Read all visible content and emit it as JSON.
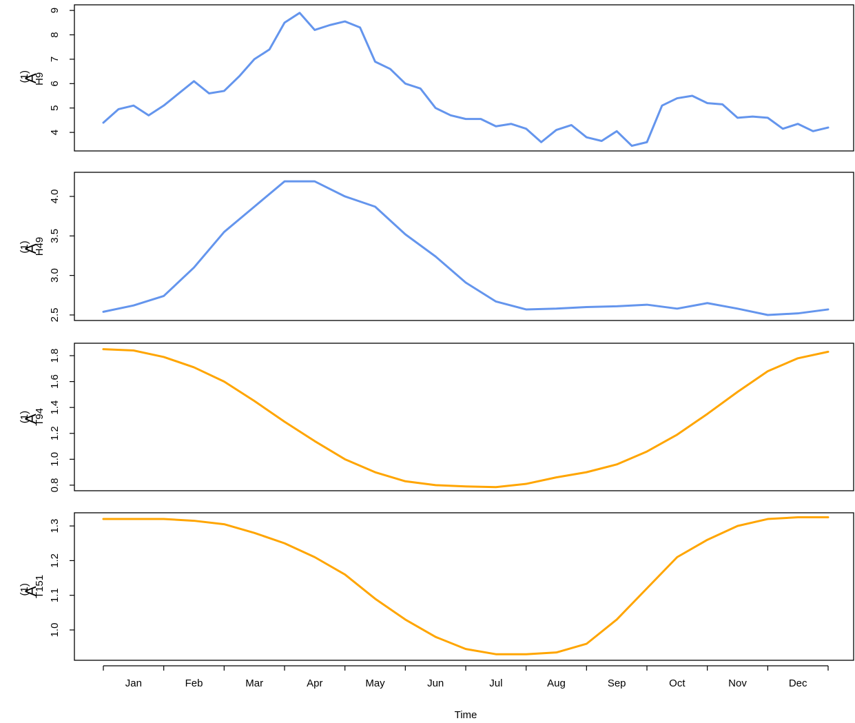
{
  "chart_data": [
    {
      "type": "line",
      "color": "#6495ED",
      "ylabel": {
        "base": "A",
        "sup": "(1)",
        "sub": "H9"
      },
      "xlim": [
        0,
        12
      ],
      "ylim": [
        3.24,
        9.23
      ],
      "yticks": [
        4,
        5,
        6,
        7,
        8,
        9
      ],
      "x": [
        0,
        0.25,
        0.5,
        0.75,
        1,
        1.25,
        1.5,
        1.75,
        2,
        2.25,
        2.5,
        2.75,
        3,
        3.25,
        3.5,
        3.75,
        4,
        4.25,
        4.5,
        4.75,
        5,
        5.25,
        5.5,
        5.75,
        6,
        6.25,
        6.5,
        6.75,
        7,
        7.25,
        7.5,
        7.75,
        8,
        8.25,
        8.5,
        8.75,
        9,
        9.25,
        9.5,
        9.75,
        10,
        10.25,
        10.5,
        10.75,
        11,
        11.25,
        11.5,
        11.75,
        12
      ],
      "values": [
        4.4,
        4.95,
        5.1,
        4.7,
        5.1,
        5.6,
        6.1,
        5.6,
        5.7,
        6.3,
        7.0,
        7.4,
        8.5,
        8.9,
        8.2,
        8.4,
        8.55,
        8.3,
        6.9,
        6.6,
        6.0,
        5.8,
        5.0,
        4.7,
        4.55,
        4.55,
        4.25,
        4.35,
        4.15,
        3.6,
        4.1,
        4.3,
        3.8,
        3.65,
        4.05,
        3.45,
        3.6,
        5.1,
        5.4,
        5.5,
        5.2,
        5.15,
        4.6,
        4.65,
        4.6,
        4.15,
        4.35,
        4.05,
        4.2
      ]
    },
    {
      "type": "line",
      "color": "#6495ED",
      "ylabel": {
        "base": "A",
        "sup": "(1)",
        "sub": "H49"
      },
      "xlim": [
        0,
        12
      ],
      "ylim": [
        2.43,
        4.305
      ],
      "yticks": [
        2.5,
        {
          "value": 3,
          "label": "3.0"
        },
        3.5,
        {
          "value": 4,
          "label": "4.0"
        }
      ],
      "x": [
        0,
        0.5,
        1,
        1.5,
        2,
        2.5,
        3,
        3.5,
        4,
        4.5,
        5,
        5.5,
        6,
        6.5,
        7,
        7.5,
        8,
        8.5,
        9,
        9.5,
        10,
        10.5,
        11,
        11.5,
        12
      ],
      "values": [
        2.54,
        2.62,
        2.74,
        3.1,
        3.55,
        3.87,
        4.19,
        4.19,
        4.0,
        3.87,
        3.52,
        3.24,
        2.91,
        2.67,
        2.57,
        2.58,
        2.6,
        2.61,
        2.63,
        2.58,
        2.65,
        2.58,
        2.5,
        2.52,
        2.57
      ]
    },
    {
      "type": "line",
      "color": "#FFA500",
      "ylabel": {
        "base": "A",
        "sup": "(1)",
        "sub": "T94"
      },
      "xlim": [
        0,
        12
      ],
      "ylim": [
        0.757,
        1.896
      ],
      "yticks": [
        0.8,
        {
          "value": 1,
          "label": "1.0"
        },
        1.2,
        1.4,
        1.6,
        1.8
      ],
      "x": [
        0,
        0.5,
        1,
        1.5,
        2,
        2.5,
        3,
        3.5,
        4,
        4.5,
        5,
        5.5,
        6,
        6.5,
        7,
        7.5,
        8,
        8.5,
        9,
        9.5,
        10,
        10.5,
        11,
        11.5,
        12
      ],
      "values": [
        1.85,
        1.84,
        1.79,
        1.71,
        1.6,
        1.45,
        1.29,
        1.14,
        1.0,
        0.9,
        0.83,
        0.8,
        0.79,
        0.785,
        0.81,
        0.86,
        0.9,
        0.96,
        1.06,
        1.19,
        1.35,
        1.52,
        1.68,
        1.78,
        1.83
      ]
    },
    {
      "type": "line",
      "color": "#FFA500",
      "ylabel": {
        "base": "A",
        "sup": "(1)",
        "sub": "T151"
      },
      "xlim": [
        0,
        12
      ],
      "ylim": [
        0.9125,
        1.338
      ],
      "yticks": [
        {
          "value": 1,
          "label": "1.0"
        },
        1.1,
        1.2,
        1.3
      ],
      "x": [
        0,
        0.5,
        1,
        1.5,
        2,
        2.5,
        3,
        3.5,
        4,
        4.5,
        5,
        5.5,
        6,
        6.5,
        7,
        7.5,
        8,
        8.5,
        9,
        9.5,
        10,
        10.5,
        11,
        11.5,
        12
      ],
      "values": [
        1.32,
        1.32,
        1.32,
        1.315,
        1.305,
        1.28,
        1.25,
        1.21,
        1.16,
        1.09,
        1.03,
        0.98,
        0.945,
        0.93,
        0.93,
        0.935,
        0.96,
        1.03,
        1.12,
        1.21,
        1.26,
        1.3,
        1.32,
        1.325,
        1.325
      ],
      "categories": [
        "Jan",
        "Feb",
        "Mar",
        "Apr",
        "May",
        "Jun",
        "Jul",
        "Aug",
        "Sep",
        "Oct",
        "Nov",
        "Dec"
      ],
      "xlabel": "Time"
    }
  ]
}
